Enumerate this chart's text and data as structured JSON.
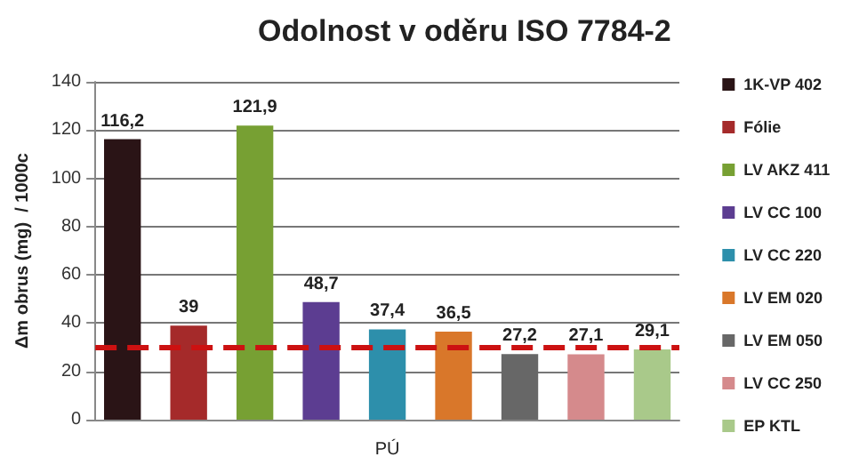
{
  "chart_data": {
    "type": "bar",
    "title": "Odolnost v oděru ISO 7784-2",
    "ylabel": "Δm obrus (mg)  / 1000c",
    "categories": [
      "PÚ"
    ],
    "series": [
      {
        "name": "1K-VP 402",
        "color": "#2a1416",
        "values": [
          116.2
        ],
        "value_labels": [
          "116,2"
        ]
      },
      {
        "name": "Fólie",
        "color": "#a52a2a",
        "values": [
          39
        ],
        "value_labels": [
          "39"
        ]
      },
      {
        "name": "LV AKZ 411",
        "color": "#77a033",
        "values": [
          121.9
        ],
        "value_labels": [
          "121,9"
        ]
      },
      {
        "name": "LV CC 100",
        "color": "#5c3d91",
        "values": [
          48.7
        ],
        "value_labels": [
          "48,7"
        ]
      },
      {
        "name": "LV CC 220",
        "color": "#2d8fab",
        "values": [
          37.4
        ],
        "value_labels": [
          "37,4"
        ]
      },
      {
        "name": "LV EM 020",
        "color": "#d9772a",
        "values": [
          36.5
        ],
        "value_labels": [
          "36,5"
        ]
      },
      {
        "name": "LV EM 050",
        "color": "#676767",
        "values": [
          27.2
        ],
        "value_labels": [
          "27,2"
        ]
      },
      {
        "name": "LV CC 250",
        "color": "#d58a8c",
        "values": [
          27.1
        ],
        "value_labels": [
          "27,1"
        ]
      },
      {
        "name": "EP KTL",
        "color": "#a9c98a",
        "values": [
          29.1
        ],
        "value_labels": [
          "29,1"
        ]
      }
    ],
    "ylim": [
      0,
      140
    ],
    "yticks": [
      0,
      20,
      40,
      60,
      80,
      100,
      120,
      140
    ],
    "grid": "y",
    "legend": "right",
    "ref_lines": [
      {
        "axis": "y",
        "value": 30,
        "color": "#cc1111",
        "line_style": "dashed"
      }
    ]
  }
}
